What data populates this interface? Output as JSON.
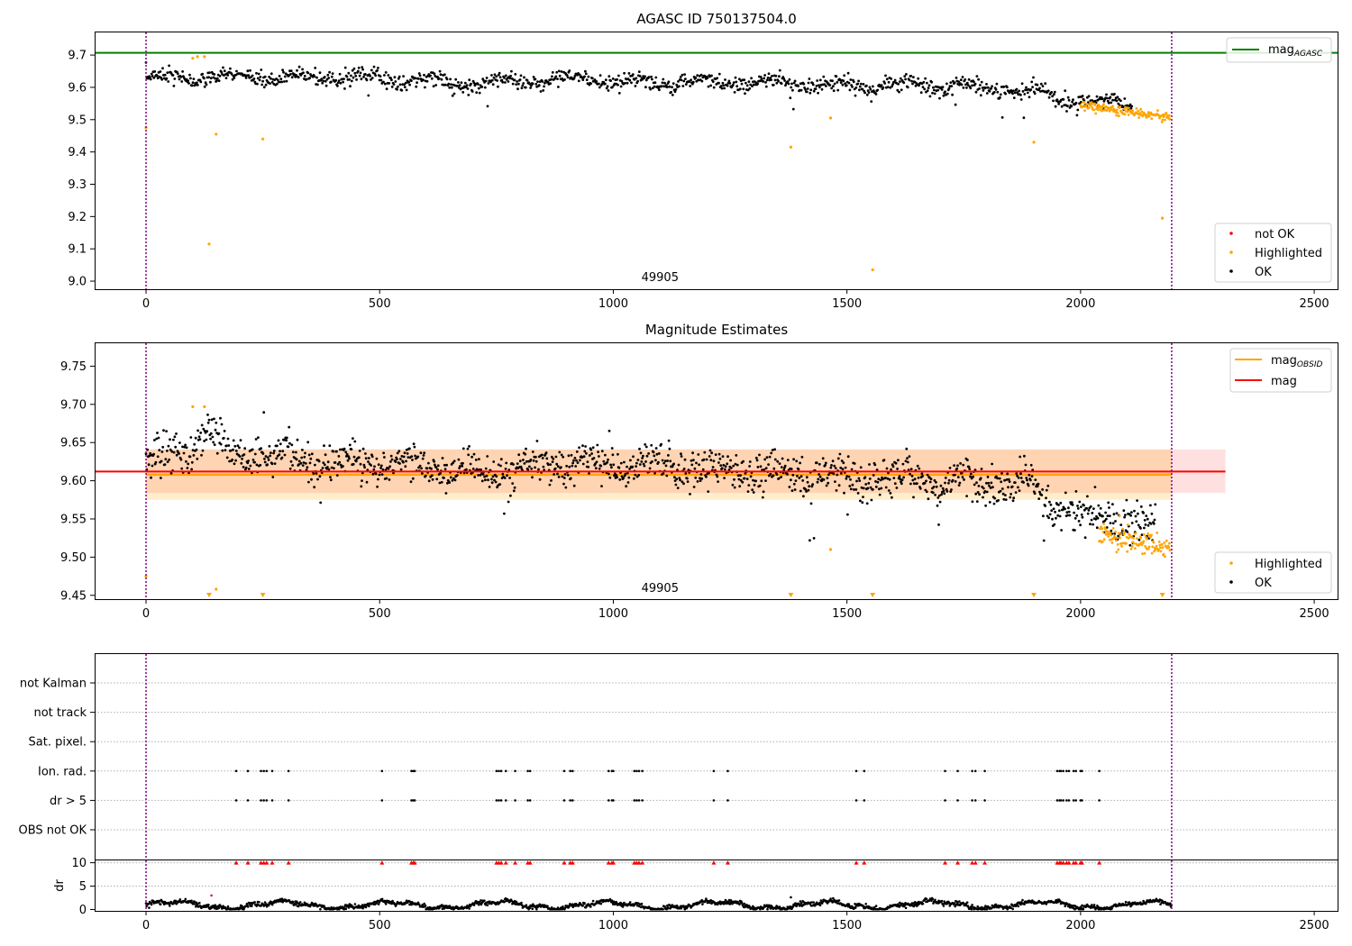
{
  "chart_data": [
    {
      "type": "scatter",
      "title": "AGASC ID 750137504.0",
      "xlim": [
        -110,
        2550
      ],
      "ylim": [
        8.975,
        9.77
      ],
      "x_ticks": [
        0,
        500,
        1000,
        1500,
        2000,
        2500
      ],
      "y_ticks": [
        9.0,
        9.1,
        9.2,
        9.3,
        9.4,
        9.5,
        9.6,
        9.7
      ],
      "vlines": [
        0,
        2195
      ],
      "annotation": "49905",
      "annotation_x": 1100,
      "legend_top": {
        "line_label": "mag",
        "line_label_sub": "AGASC",
        "color": "#008000"
      },
      "legend_bottom": [
        {
          "label": "not OK",
          "color": "#ff0000"
        },
        {
          "label": "Highlighted",
          "color": "#ffa500"
        },
        {
          "label": "OK",
          "color": "#000000"
        }
      ],
      "mag_agasc": 9.707,
      "series": [
        {
          "name": "OK",
          "trend": [
            [
              0,
              9.63
            ],
            [
              300,
              9.63
            ],
            [
              500,
              9.63
            ],
            [
              700,
              9.61
            ],
            [
              900,
              9.625
            ],
            [
              1100,
              9.615
            ],
            [
              1300,
              9.615
            ],
            [
              1500,
              9.605
            ],
            [
              1700,
              9.605
            ],
            [
              1900,
              9.59
            ],
            [
              1950,
              9.565
            ],
            [
              2050,
              9.55
            ],
            [
              2150,
              9.54
            ]
          ]
        },
        {
          "name": "Highlighted",
          "points": [
            [
              0,
              9.475
            ],
            [
              100,
              9.69
            ],
            [
              110,
              9.695
            ],
            [
              125,
              9.695
            ],
            [
              135,
              9.115
            ],
            [
              150,
              9.455
            ],
            [
              250,
              9.44
            ],
            [
              1380,
              9.415
            ],
            [
              1465,
              9.505
            ],
            [
              1555,
              9.035
            ],
            [
              1900,
              9.43
            ],
            [
              2175,
              9.195
            ]
          ],
          "trend": [
            [
              2000,
              9.545
            ],
            [
              2100,
              9.525
            ],
            [
              2190,
              9.51
            ]
          ]
        }
      ]
    },
    {
      "type": "scatter",
      "title": "Magnitude Estimates",
      "xlim": [
        -110,
        2550
      ],
      "ylim": [
        9.445,
        9.78
      ],
      "x_ticks": [
        0,
        500,
        1000,
        1500,
        2000,
        2500
      ],
      "y_ticks": [
        9.45,
        9.5,
        9.55,
        9.6,
        9.65,
        9.7,
        9.75
      ],
      "vlines": [
        0,
        2195
      ],
      "annotation": "49905",
      "annotation_x": 1100,
      "legend_top": [
        {
          "label": "mag",
          "label_sub": "OBSID",
          "color": "#ffa500"
        },
        {
          "label": "mag",
          "color": "#ff0000"
        }
      ],
      "legend_bottom": [
        {
          "label": "Highlighted",
          "color": "#ffa500"
        },
        {
          "label": "OK",
          "color": "#000000"
        }
      ],
      "mag_obsid": 9.608,
      "mag_obsid_band": [
        9.575,
        9.641
      ],
      "mag_obsid_range": [
        0,
        2195
      ],
      "mag": 9.612,
      "mag_band": [
        9.584,
        9.641
      ],
      "mag_range": [
        0,
        2310
      ],
      "series": [
        {
          "name": "OK",
          "trend": [
            [
              0,
              9.625
            ],
            [
              100,
              9.64
            ],
            [
              130,
              9.67
            ],
            [
              180,
              9.635
            ],
            [
              300,
              9.63
            ],
            [
              500,
              9.625
            ],
            [
              700,
              9.61
            ],
            [
              900,
              9.625
            ],
            [
              1100,
              9.62
            ],
            [
              1300,
              9.61
            ],
            [
              1500,
              9.605
            ],
            [
              1700,
              9.6
            ],
            [
              1900,
              9.59
            ],
            [
              1950,
              9.565
            ],
            [
              2050,
              9.55
            ],
            [
              2150,
              9.54
            ]
          ]
        },
        {
          "name": "Highlighted",
          "points": [
            [
              0,
              9.475
            ],
            [
              100,
              9.697
            ],
            [
              125,
              9.697
            ],
            [
              150,
              9.458
            ],
            [
              1465,
              9.51
            ]
          ],
          "trend": [
            [
              2050,
              9.53
            ],
            [
              2120,
              9.52
            ],
            [
              2190,
              9.51
            ]
          ]
        }
      ],
      "down_markers": [
        135,
        250,
        1380,
        1555,
        1900,
        2175
      ]
    },
    {
      "type": "scatter",
      "xlim": [
        -110,
        2550
      ],
      "categories": [
        "OBS not OK",
        "dr > 5",
        "Ion. rad.",
        "Sat. pixel.",
        "not track",
        "not Kalman"
      ],
      "x_ticks": [
        0,
        500,
        1000,
        1500,
        2000,
        2500
      ],
      "vlines": [
        0,
        2195
      ],
      "flag_x": [
        193,
        218,
        246,
        252,
        258,
        270,
        305,
        505,
        568,
        572,
        575,
        750,
        755,
        760,
        770,
        790,
        817,
        822,
        895,
        908,
        913,
        990,
        997,
        1000,
        1045,
        1050,
        1055,
        1062,
        1215,
        1245,
        1520,
        1537,
        1710,
        1737,
        1768,
        1775,
        1795,
        1950,
        1955,
        1958,
        1963,
        1970,
        1975,
        1985,
        1990,
        2000,
        2003,
        2040
      ],
      "flag_rows": [
        "dr > 5",
        "Ion. rad."
      ]
    },
    {
      "type": "scatter",
      "xlim": [
        -110,
        2550
      ],
      "ylim": [
        -0.3,
        10.5
      ],
      "ylabel": "dr",
      "y_ticks": [
        0,
        5,
        10
      ],
      "x_ticks": [
        0,
        500,
        1000,
        1500,
        2000,
        2500
      ],
      "vlines": [
        0,
        2195
      ],
      "clipped_value": 10,
      "outliers": [
        [
          140,
          3.0
        ],
        [
          1380,
          2.6
        ]
      ]
    }
  ]
}
